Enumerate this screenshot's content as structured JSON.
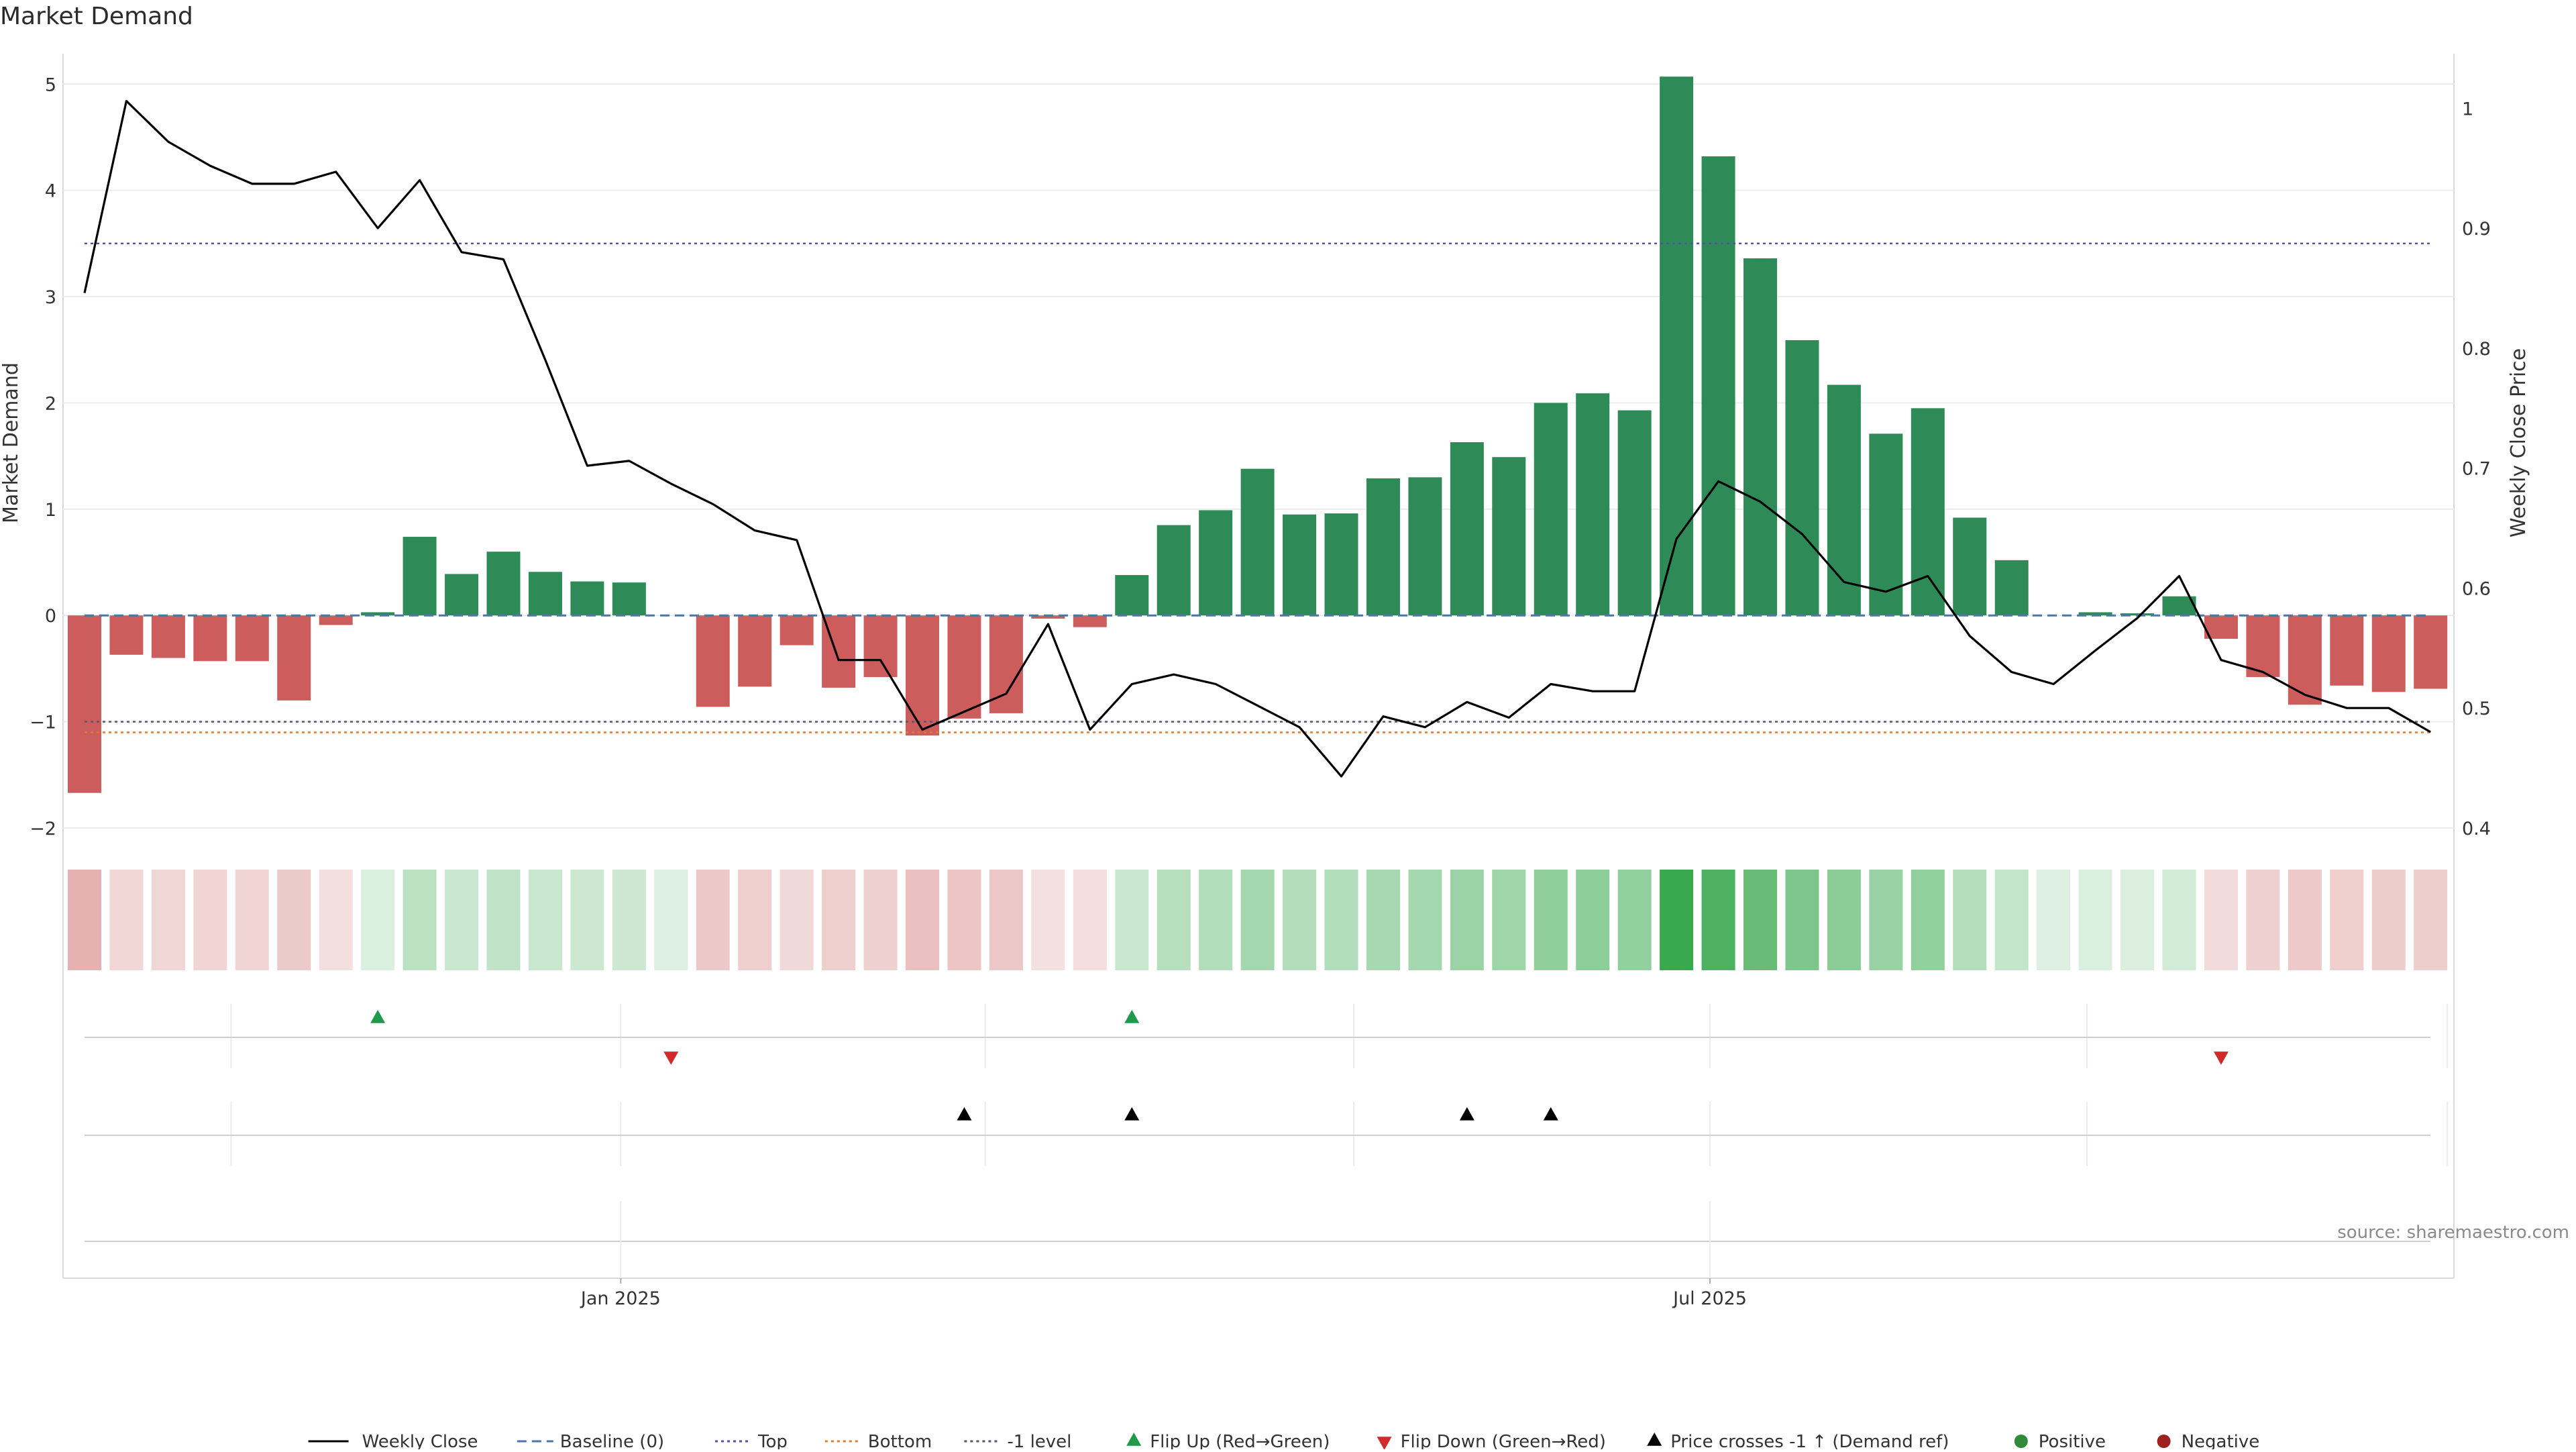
{
  "title": "Market Demand",
  "source": "source: sharemaestro.com",
  "chart_data": {
    "type": "bar+line",
    "title": "Market Demand",
    "left_axis": {
      "label": "Market Demand",
      "range": [
        -2.0,
        5.45
      ],
      "ticks": [
        -2,
        -1,
        0,
        1,
        2,
        3,
        4,
        5
      ]
    },
    "right_axis": {
      "label": "Weekly Close Price",
      "range": [
        0.4,
        1.06
      ],
      "ticks": [
        0.4,
        0.5,
        0.6,
        0.7,
        0.8,
        0.9,
        1
      ]
    },
    "x_ticks": [
      {
        "label": "Jan 2025",
        "week": 12.8
      },
      {
        "label": "Jul 2025",
        "week": 38.8
      }
    ],
    "reference_lines": {
      "baseline": 0,
      "top": 3.5,
      "bottom": -1.1,
      "minus_one": -1
    },
    "demand": [
      -1.67,
      -0.37,
      -0.4,
      -0.43,
      -0.43,
      -0.8,
      -0.09,
      0.03,
      0.74,
      0.39,
      0.6,
      0.41,
      0.32,
      0.31,
      0.0,
      -0.86,
      -0.67,
      -0.28,
      -0.68,
      -0.58,
      -1.13,
      -0.97,
      -0.92,
      -0.03,
      -0.11,
      0.38,
      0.85,
      0.99,
      1.38,
      0.95,
      0.96,
      1.29,
      1.3,
      1.63,
      1.49,
      2.0,
      2.09,
      1.93,
      5.07,
      4.32,
      3.36,
      2.59,
      2.17,
      1.71,
      1.95,
      0.92,
      0.52,
      0.0,
      0.03,
      0.02,
      0.18,
      -0.22,
      -0.58,
      -0.84,
      -0.66,
      -0.72,
      -0.69
    ],
    "weekly_close": [
      0.846,
      1.006,
      0.972,
      0.952,
      0.937,
      0.937,
      0.947,
      0.9,
      0.94,
      0.88,
      0.874,
      0.79,
      0.702,
      0.706,
      0.687,
      0.67,
      0.648,
      0.64,
      0.54,
      0.54,
      0.482,
      0.497,
      0.512,
      0.57,
      0.482,
      0.52,
      0.528,
      0.52,
      0.502,
      0.484,
      0.443,
      0.493,
      0.484,
      0.505,
      0.492,
      0.52,
      0.514,
      0.514,
      0.641,
      0.689,
      0.672,
      0.645,
      0.605,
      0.597,
      0.61,
      0.56,
      0.53,
      0.52,
      0.548,
      0.575,
      0.61,
      0.54,
      0.53,
      0.511,
      0.5,
      0.5,
      0.48
    ],
    "flip_up_weeks": [
      7,
      25
    ],
    "flip_down_weeks": [
      14,
      51
    ],
    "price_cross_weeks": [
      21,
      25,
      33,
      35
    ]
  },
  "legend": [
    {
      "label": "Weekly Close",
      "kind": "line",
      "color": "#000000"
    },
    {
      "label": "Baseline (0)",
      "kind": "dash",
      "color": "#4a76a8"
    },
    {
      "label": "Top",
      "kind": "dot",
      "color": "#5a4fa5"
    },
    {
      "label": "Bottom",
      "kind": "dot",
      "color": "#e07b2a"
    },
    {
      "label": "-1 level",
      "kind": "dot",
      "color": "#555577"
    },
    {
      "label": "Flip Up (Red→Green)",
      "kind": "tri-up",
      "color": "#1f9a4a"
    },
    {
      "label": "Flip Down (Green→Red)",
      "kind": "tri-down",
      "color": "#d02a2a"
    },
    {
      "label": "Price crosses -1 ↑ (Demand ref)",
      "kind": "tri-up",
      "color": "#000000"
    },
    {
      "label": "Positive",
      "kind": "circle",
      "color": "#2f8a3a"
    },
    {
      "label": "Negative",
      "kind": "circle",
      "color": "#a02020"
    }
  ],
  "colors": {
    "positive": "#2e8b57",
    "negative": "#cd5c5c"
  }
}
